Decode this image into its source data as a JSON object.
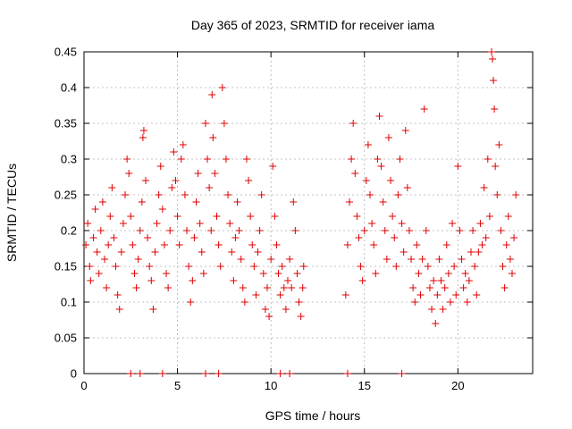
{
  "chart_data": {
    "type": "scatter",
    "title": "Day 365 of 2023, SRMTID for receiver iama",
    "xlabel": "GPS time / hours",
    "ylabel": "SRMTID / TECUs",
    "xlim": [
      0,
      24
    ],
    "ylim": [
      0,
      0.45
    ],
    "x_ticks": [
      0,
      5,
      10,
      15,
      20
    ],
    "y_ticks": [
      0,
      0.05,
      0.1,
      0.15,
      0.2,
      0.25,
      0.3,
      0.35,
      0.4,
      0.45
    ],
    "x_tick_labels": [
      "0",
      "5",
      "10",
      "15",
      "20"
    ],
    "y_tick_labels": [
      "0",
      "0.05",
      "0.1",
      "0.15",
      "0.2",
      "0.25",
      "0.3",
      "0.35",
      "0.4",
      "0.45"
    ],
    "grid": true,
    "marker": "+",
    "color": "#e00000",
    "series": [
      {
        "name": "SRMTID",
        "points": [
          [
            0.1,
            0.18
          ],
          [
            0.2,
            0.21
          ],
          [
            0.3,
            0.15
          ],
          [
            0.35,
            0.13
          ],
          [
            0.5,
            0.19
          ],
          [
            0.6,
            0.23
          ],
          [
            0.7,
            0.17
          ],
          [
            0.8,
            0.14
          ],
          [
            0.9,
            0.2
          ],
          [
            1.0,
            0.24
          ],
          [
            1.1,
            0.16
          ],
          [
            1.2,
            0.12
          ],
          [
            1.3,
            0.18
          ],
          [
            1.4,
            0.22
          ],
          [
            1.5,
            0.26
          ],
          [
            1.6,
            0.19
          ],
          [
            1.7,
            0.15
          ],
          [
            1.8,
            0.11
          ],
          [
            1.9,
            0.09
          ],
          [
            2.0,
            0.17
          ],
          [
            2.1,
            0.21
          ],
          [
            2.2,
            0.25
          ],
          [
            2.3,
            0.3
          ],
          [
            2.4,
            0.28
          ],
          [
            2.5,
            0.22
          ],
          [
            2.6,
            0.18
          ],
          [
            2.7,
            0.14
          ],
          [
            2.8,
            0.12
          ],
          [
            2.9,
            0.16
          ],
          [
            3.0,
            0.2
          ],
          [
            3.1,
            0.24
          ],
          [
            3.15,
            0.33
          ],
          [
            3.2,
            0.34
          ],
          [
            3.3,
            0.27
          ],
          [
            3.4,
            0.19
          ],
          [
            3.5,
            0.15
          ],
          [
            3.6,
            0.13
          ],
          [
            3.7,
            0.09
          ],
          [
            3.8,
            0.17
          ],
          [
            3.9,
            0.21
          ],
          [
            4.0,
            0.25
          ],
          [
            4.1,
            0.29
          ],
          [
            4.2,
            0.23
          ],
          [
            4.3,
            0.18
          ],
          [
            4.4,
            0.14
          ],
          [
            4.5,
            0.12
          ],
          [
            4.6,
            0.2
          ],
          [
            4.7,
            0.26
          ],
          [
            4.8,
            0.31
          ],
          [
            4.9,
            0.27
          ],
          [
            5.0,
            0.22
          ],
          [
            5.1,
            0.18
          ],
          [
            5.2,
            0.3
          ],
          [
            5.3,
            0.32
          ],
          [
            5.4,
            0.25
          ],
          [
            5.5,
            0.2
          ],
          [
            5.6,
            0.15
          ],
          [
            5.7,
            0.1
          ],
          [
            5.8,
            0.13
          ],
          [
            5.9,
            0.19
          ],
          [
            6.0,
            0.24
          ],
          [
            6.1,
            0.28
          ],
          [
            6.2,
            0.21
          ],
          [
            6.3,
            0.17
          ],
          [
            6.4,
            0.14
          ],
          [
            6.5,
            0.35
          ],
          [
            6.6,
            0.3
          ],
          [
            6.7,
            0.26
          ],
          [
            6.8,
            0.2
          ],
          [
            6.85,
            0.39
          ],
          [
            6.9,
            0.33
          ],
          [
            7.0,
            0.28
          ],
          [
            7.1,
            0.22
          ],
          [
            7.2,
            0.18
          ],
          [
            7.3,
            0.15
          ],
          [
            7.4,
            0.4
          ],
          [
            7.5,
            0.35
          ],
          [
            7.6,
            0.3
          ],
          [
            7.7,
            0.25
          ],
          [
            7.8,
            0.21
          ],
          [
            7.9,
            0.17
          ],
          [
            8.0,
            0.13
          ],
          [
            8.1,
            0.19
          ],
          [
            8.2,
            0.24
          ],
          [
            8.3,
            0.2
          ],
          [
            8.4,
            0.16
          ],
          [
            8.5,
            0.12
          ],
          [
            8.6,
            0.1
          ],
          [
            8.7,
            0.3
          ],
          [
            8.8,
            0.27
          ],
          [
            8.9,
            0.22
          ],
          [
            9.0,
            0.18
          ],
          [
            9.1,
            0.15
          ],
          [
            9.2,
            0.11
          ],
          [
            9.3,
            0.17
          ],
          [
            9.4,
            0.2
          ],
          [
            9.5,
            0.25
          ],
          [
            9.6,
            0.14
          ],
          [
            9.7,
            0.09
          ],
          [
            9.8,
            0.12
          ],
          [
            9.9,
            0.08
          ],
          [
            10.0,
            0.16
          ],
          [
            10.1,
            0.29
          ],
          [
            10.2,
            0.22
          ],
          [
            10.3,
            0.18
          ],
          [
            10.4,
            0.14
          ],
          [
            10.5,
            0.11
          ],
          [
            10.6,
            0.15
          ],
          [
            10.7,
            0.12
          ],
          [
            10.8,
            0.09
          ],
          [
            10.9,
            0.13
          ],
          [
            11.0,
            0.16
          ],
          [
            11.1,
            0.12
          ],
          [
            11.2,
            0.24
          ],
          [
            11.3,
            0.2
          ],
          [
            11.4,
            0.14
          ],
          [
            11.5,
            0.1
          ],
          [
            11.6,
            0.08
          ],
          [
            11.7,
            0.12
          ],
          [
            11.75,
            0.15
          ],
          [
            14.0,
            0.11
          ],
          [
            14.1,
            0.18
          ],
          [
            14.2,
            0.24
          ],
          [
            14.3,
            0.3
          ],
          [
            14.4,
            0.35
          ],
          [
            14.5,
            0.28
          ],
          [
            14.6,
            0.22
          ],
          [
            14.7,
            0.19
          ],
          [
            14.8,
            0.15
          ],
          [
            14.9,
            0.13
          ],
          [
            15.0,
            0.2
          ],
          [
            15.1,
            0.27
          ],
          [
            15.2,
            0.32
          ],
          [
            15.3,
            0.25
          ],
          [
            15.4,
            0.21
          ],
          [
            15.5,
            0.18
          ],
          [
            15.6,
            0.14
          ],
          [
            15.7,
            0.3
          ],
          [
            15.8,
            0.36
          ],
          [
            15.9,
            0.29
          ],
          [
            16.0,
            0.24
          ],
          [
            16.1,
            0.2
          ],
          [
            16.2,
            0.16
          ],
          [
            16.3,
            0.33
          ],
          [
            16.4,
            0.27
          ],
          [
            16.5,
            0.22
          ],
          [
            16.6,
            0.19
          ],
          [
            16.7,
            0.15
          ],
          [
            16.8,
            0.25
          ],
          [
            16.9,
            0.3
          ],
          [
            17.0,
            0.21
          ],
          [
            17.1,
            0.17
          ],
          [
            17.2,
            0.34
          ],
          [
            17.3,
            0.26
          ],
          [
            17.4,
            0.2
          ],
          [
            17.5,
            0.16
          ],
          [
            17.6,
            0.12
          ],
          [
            17.7,
            0.1
          ],
          [
            17.8,
            0.18
          ],
          [
            17.9,
            0.14
          ],
          [
            18.0,
            0.11
          ],
          [
            18.1,
            0.16
          ],
          [
            18.2,
            0.37
          ],
          [
            18.3,
            0.2
          ],
          [
            18.4,
            0.15
          ],
          [
            18.5,
            0.12
          ],
          [
            18.6,
            0.09
          ],
          [
            18.7,
            0.13
          ],
          [
            18.8,
            0.07
          ],
          [
            18.9,
            0.11
          ],
          [
            19.0,
            0.16
          ],
          [
            19.1,
            0.13
          ],
          [
            19.2,
            0.09
          ],
          [
            19.3,
            0.12
          ],
          [
            19.4,
            0.18
          ],
          [
            19.5,
            0.14
          ],
          [
            19.6,
            0.1
          ],
          [
            19.7,
            0.21
          ],
          [
            19.8,
            0.15
          ],
          [
            19.9,
            0.11
          ],
          [
            20.0,
            0.29
          ],
          [
            20.1,
            0.2
          ],
          [
            20.2,
            0.16
          ],
          [
            20.3,
            0.12
          ],
          [
            20.4,
            0.14
          ],
          [
            20.5,
            0.1
          ],
          [
            20.6,
            0.13
          ],
          [
            20.7,
            0.17
          ],
          [
            20.8,
            0.2
          ],
          [
            20.9,
            0.15
          ],
          [
            21.0,
            0.11
          ],
          [
            21.1,
            0.17
          ],
          [
            21.2,
            0.21
          ],
          [
            21.3,
            0.18
          ],
          [
            21.4,
            0.26
          ],
          [
            21.5,
            0.19
          ],
          [
            21.6,
            0.3
          ],
          [
            21.7,
            0.22
          ],
          [
            21.8,
            0.45
          ],
          [
            21.85,
            0.44
          ],
          [
            21.9,
            0.41
          ],
          [
            21.95,
            0.37
          ],
          [
            22.0,
            0.29
          ],
          [
            22.1,
            0.25
          ],
          [
            22.2,
            0.32
          ],
          [
            22.3,
            0.2
          ],
          [
            22.4,
            0.15
          ],
          [
            22.5,
            0.12
          ],
          [
            22.6,
            0.18
          ],
          [
            22.7,
            0.22
          ],
          [
            22.8,
            0.16
          ],
          [
            22.9,
            0.14
          ],
          [
            23.0,
            0.19
          ],
          [
            23.1,
            0.25
          ],
          [
            2.5,
            0.0
          ],
          [
            3.0,
            0.0
          ],
          [
            4.2,
            0.0
          ],
          [
            6.5,
            0.0
          ],
          [
            7.2,
            0.0
          ],
          [
            10.5,
            0.0
          ],
          [
            11.0,
            0.0
          ],
          [
            14.1,
            0.0
          ],
          [
            17.0,
            0.0
          ]
        ]
      }
    ]
  }
}
